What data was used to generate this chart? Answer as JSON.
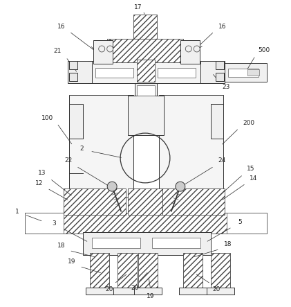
{
  "bg_color": "#ffffff",
  "line_color": "#333333",
  "fig_width": 4.21,
  "fig_height": 4.43,
  "dpi": 100
}
